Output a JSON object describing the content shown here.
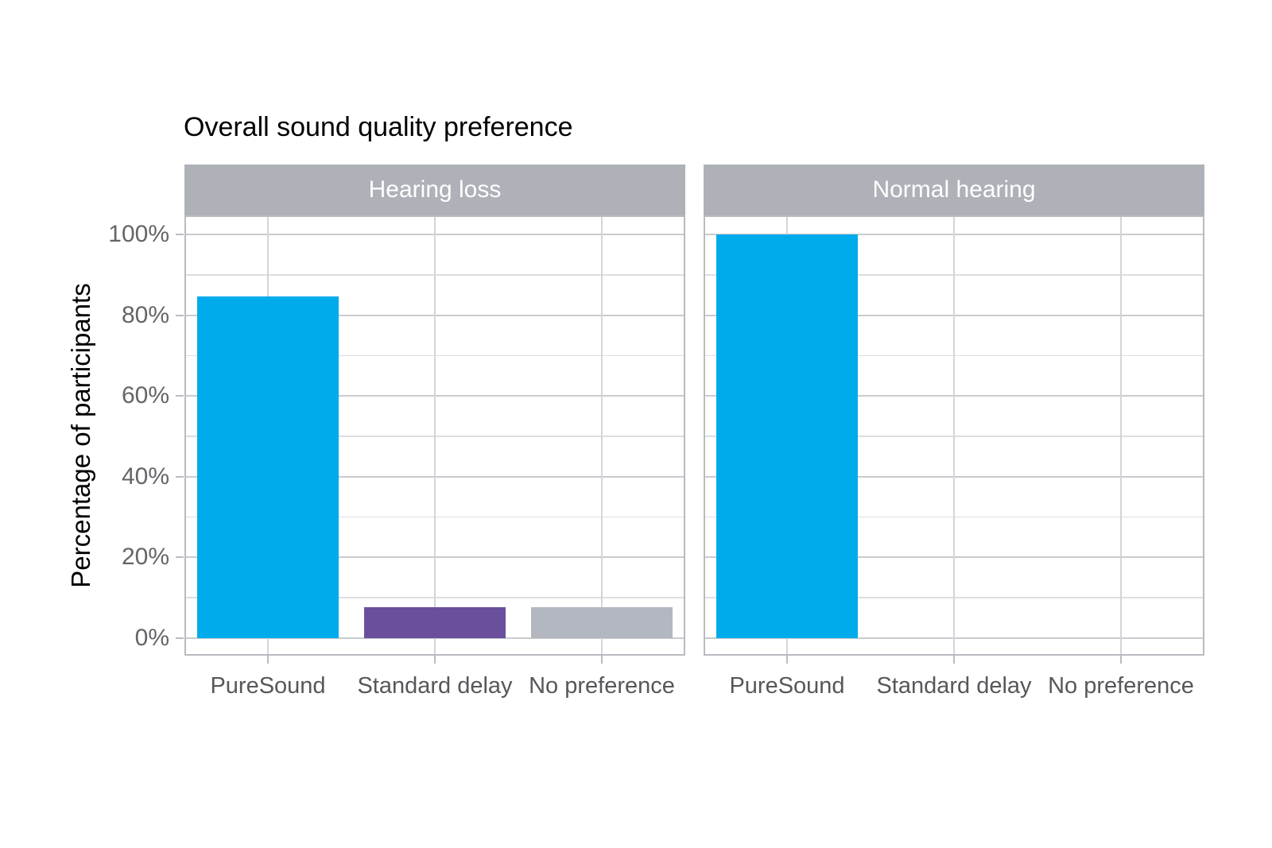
{
  "chart_data": {
    "type": "bar",
    "title": "Overall sound quality preference",
    "ylabel": "Percentage of participants",
    "xlabel": "",
    "categories": [
      "PureSound",
      "Standard delay",
      "No preference"
    ],
    "facets": [
      {
        "label": "Hearing loss",
        "values": [
          84.6,
          7.7,
          7.7
        ]
      },
      {
        "label": "Normal hearing",
        "values": [
          100,
          0,
          0
        ]
      }
    ],
    "bar_colors": [
      "#00abec",
      "#6a4f9d",
      "#b3b7bf"
    ],
    "ylim": [
      0,
      100
    ],
    "yticks": [
      0,
      20,
      40,
      60,
      80,
      100
    ],
    "ytick_labels": [
      "0%",
      "20%",
      "40%",
      "60%",
      "80%",
      "100%"
    ],
    "yminor": [
      10,
      30,
      50,
      70,
      90
    ],
    "grid": "on",
    "legend": "none"
  },
  "colors": {
    "background": "#ffffff",
    "strip_background": "#aeb1b7",
    "strip_text": "#ffffff",
    "grid_major": "#c9cbcf",
    "grid_minor": "#dcdee1",
    "panel_border": "#b9bbc0",
    "axis_text": "#5e6063",
    "title_text": "#000000"
  }
}
